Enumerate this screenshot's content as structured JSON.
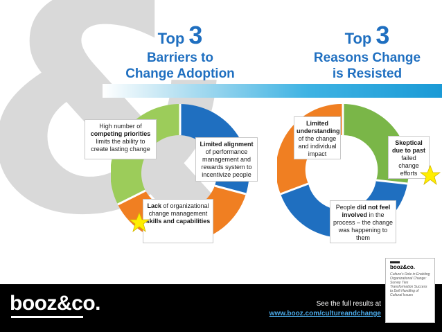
{
  "left": {
    "top_word": "Top",
    "top_number": "3",
    "title_line1": "Barriers to",
    "title_line2": "Change Adoption",
    "box1": {
      "bold": "competing priorities",
      "pre": "High number of",
      "post": "limits the ability to create lasting change"
    },
    "box2": {
      "bold": "Limited alignment",
      "post": "of performance management and rewards system to incentivize people"
    },
    "box3": {
      "bold1": "Lack",
      "mid": "of organizational change management",
      "bold2": "skills and capabilities"
    }
  },
  "right": {
    "top_word": "Top",
    "top_number": "3",
    "title_line1": "Reasons Change",
    "title_line2": "is Resisted",
    "box1": {
      "bold": "Limited understanding",
      "post": "of the change and individual impact"
    },
    "box2": {
      "bold": "Skeptical due to past",
      "post": "failed change efforts"
    },
    "box3": {
      "pre": "People",
      "bold": "did not feel involved",
      "post": "in the process – the change was happening to them"
    }
  },
  "footer": {
    "logo": "booz&co.",
    "see_text": "See the full results at",
    "link_text": "www.booz.com/cultureandchange"
  },
  "report_thumbnail": {
    "logo": "booz&co.",
    "title": "Culture's Role in Enabling Organizational Change: Survey Ties Transformation Success to Deft Handling of Cultural Issues"
  },
  "colors": {
    "brand_blue": "#1f6fc0",
    "segment_green": "#9ccc5a",
    "segment_blue": "#1f6fc0",
    "segment_orange": "#f07f22",
    "right_green": "#7ab648",
    "star": "#ffee00"
  },
  "icons": [
    "star-icon",
    "star-icon"
  ]
}
